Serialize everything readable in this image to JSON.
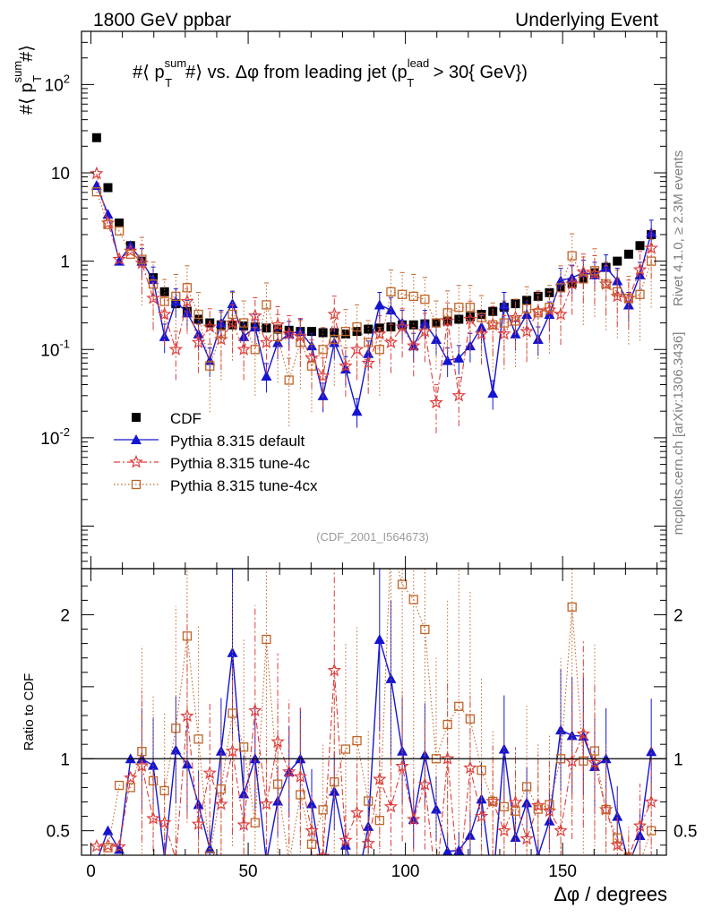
{
  "header": {
    "left": "1800 GeV ppbar",
    "right": "Underlying Event"
  },
  "side_labels": {
    "rivet": "Rivet 4.1.0, ≥ 2.3M events",
    "mcplots": "mcplots.cern.ch [arXiv:1306.3436]"
  },
  "chart_data": {
    "type": "scatter",
    "title": "#⟨ p_T^sum #⟩ vs. Δφ from leading jet (p_T^lead > 30{ GeV})",
    "title_parts": {
      "a": "#⟨ p",
      "sup1": "sum",
      "sub1": "T",
      "b": "#⟩ vs. Δφ from leading jet  (p",
      "sup2": "lead",
      "sub2": "T",
      "c": " > 30{ GeV})"
    },
    "ylabel": "#⟨ p_T^sum #⟩",
    "ylabel_parts": {
      "a": "#⟨ p",
      "sup": "sum",
      "sub": "T",
      "b": "#⟩"
    },
    "xlabel": "Δφ / degrees",
    "ratio_ylabel": "Ratio to CDF",
    "watermark": "(CDF_2001_I564673)",
    "xlim": [
      -3,
      183
    ],
    "ylim": [
      0.00033,
      400
    ],
    "yscale": "log",
    "ratio_ylim": [
      0.33,
      2.32
    ],
    "x_ticks": [
      0,
      50,
      100,
      150
    ],
    "y_ticks": [
      {
        "value": 0.01,
        "label": "10^-2"
      },
      {
        "value": 0.1,
        "label": "10^-1"
      },
      {
        "value": 1,
        "label": "1"
      },
      {
        "value": 10,
        "label": "10"
      },
      {
        "value": 100,
        "label": "10^2"
      }
    ],
    "ratio_ticks": [
      0.5,
      1,
      2
    ],
    "x": [
      1.8,
      5.4,
      9,
      12.6,
      16.2,
      19.8,
      23.4,
      27,
      30.6,
      34.2,
      37.8,
      41.4,
      45,
      48.6,
      52.2,
      55.8,
      59.4,
      63,
      66.6,
      70.2,
      73.8,
      77.4,
      81,
      84.6,
      88.2,
      91.8,
      95.4,
      99,
      102.6,
      106.2,
      109.8,
      113.4,
      117,
      120.6,
      124.2,
      127.8,
      131.4,
      135,
      138.6,
      142.2,
      145.8,
      149.4,
      153,
      156.6,
      160.2,
      163.8,
      167.4,
      171,
      174.6,
      178.2
    ],
    "series": [
      {
        "name": "CDF",
        "color": "#000000",
        "marker": "square",
        "values": [
          25,
          6.8,
          2.7,
          1.5,
          1.0,
          0.65,
          0.45,
          0.33,
          0.27,
          0.22,
          0.2,
          0.19,
          0.19,
          0.185,
          0.18,
          0.175,
          0.17,
          0.165,
          0.16,
          0.16,
          0.155,
          0.155,
          0.15,
          0.16,
          0.17,
          0.175,
          0.18,
          0.19,
          0.19,
          0.195,
          0.2,
          0.21,
          0.22,
          0.235,
          0.25,
          0.27,
          0.3,
          0.33,
          0.36,
          0.4,
          0.44,
          0.5,
          0.56,
          0.64,
          0.74,
          0.85,
          1.0,
          1.2,
          1.5,
          2.0
        ]
      },
      {
        "name": "Pythia 8.315 default",
        "color": "#1414d2",
        "marker": "triangle",
        "values": [
          7.2,
          3.4,
          1.0,
          1.5,
          1.0,
          0.62,
          0.14,
          0.35,
          0.26,
          0.15,
          0.075,
          0.2,
          0.33,
          0.14,
          0.18,
          0.05,
          0.12,
          0.15,
          0.16,
          0.11,
          0.03,
          0.12,
          0.06,
          0.02,
          0.09,
          0.32,
          0.28,
          0.2,
          0.11,
          0.2,
          0.13,
          0.075,
          0.08,
          0.11,
          0.18,
          0.032,
          0.32,
          0.15,
          0.25,
          0.13,
          0.25,
          0.6,
          0.65,
          0.74,
          0.7,
          0.85,
          0.6,
          0.32,
          0.7,
          2.1
        ]
      },
      {
        "name": "Pythia 8.315 tune-4c",
        "color": "#e03c3c",
        "marker": "star",
        "values": [
          9.8,
          2.7,
          1.05,
          1.3,
          0.95,
          0.38,
          0.25,
          0.1,
          0.35,
          0.12,
          0.18,
          0.13,
          0.2,
          0.1,
          0.24,
          0.12,
          0.19,
          0.15,
          0.14,
          0.08,
          0.05,
          0.25,
          0.065,
          0.1,
          0.07,
          0.15,
          0.12,
          0.18,
          0.11,
          0.16,
          0.025,
          0.21,
          0.03,
          0.22,
          0.15,
          0.19,
          0.15,
          0.23,
          0.16,
          0.27,
          0.28,
          0.25,
          0.55,
          0.75,
          0.72,
          0.55,
          0.4,
          0.38,
          0.8,
          1.4
        ]
      },
      {
        "name": "Pythia 8.315 tune-4cx",
        "color": "#c06428",
        "marker": "open-square",
        "values": [
          6.1,
          2.6,
          2.2,
          1.2,
          1.05,
          0.55,
          0.35,
          0.4,
          0.5,
          0.25,
          0.065,
          0.15,
          0.25,
          0.2,
          0.1,
          0.32,
          0.14,
          0.045,
          0.12,
          0.065,
          0.1,
          0.13,
          0.16,
          0.18,
          0.12,
          0.1,
          0.45,
          0.42,
          0.4,
          0.37,
          0.2,
          0.26,
          0.3,
          0.3,
          0.23,
          0.19,
          0.2,
          0.21,
          0.29,
          0.26,
          0.3,
          0.5,
          1.15,
          0.63,
          0.78,
          0.55,
          0.45,
          0.38,
          0.42,
          1.0
        ]
      }
    ]
  }
}
